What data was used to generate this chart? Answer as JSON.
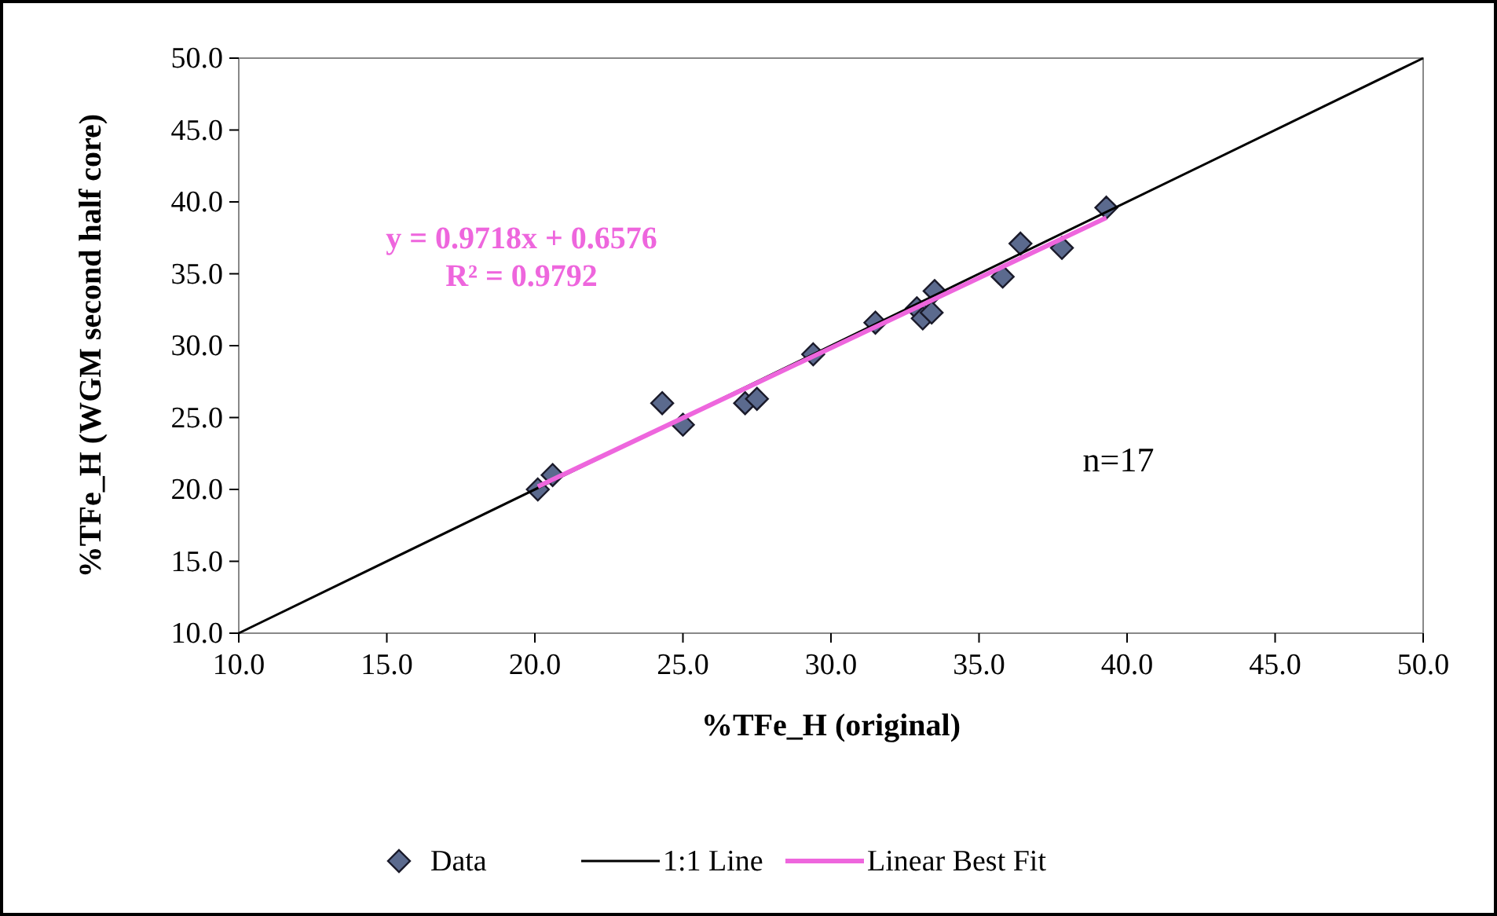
{
  "chart_data": {
    "type": "scatter",
    "xlabel": "%TFe_H (original)",
    "ylabel": "%TFe_H (WGM second half core)",
    "xlim": [
      10,
      50
    ],
    "ylim": [
      10,
      50
    ],
    "xticks": [
      {
        "value": 10,
        "label": "10.0"
      },
      {
        "value": 15,
        "label": "15.0"
      },
      {
        "value": 20,
        "label": "20.0"
      },
      {
        "value": 25,
        "label": "25.0"
      },
      {
        "value": 30,
        "label": "30.0"
      },
      {
        "value": 35,
        "label": "35.0"
      },
      {
        "value": 40,
        "label": "40.0"
      },
      {
        "value": 45,
        "label": "45.0"
      },
      {
        "value": 50,
        "label": "50.0"
      }
    ],
    "yticks": [
      {
        "value": 10,
        "label": "10.0"
      },
      {
        "value": 15,
        "label": "15.0"
      },
      {
        "value": 20,
        "label": "20.0"
      },
      {
        "value": 25,
        "label": "25.0"
      },
      {
        "value": 30,
        "label": "30.0"
      },
      {
        "value": 35,
        "label": "35.0"
      },
      {
        "value": 40,
        "label": "40.0"
      },
      {
        "value": 45,
        "label": "45.0"
      },
      {
        "value": 50,
        "label": "50.0"
      }
    ],
    "grid": false,
    "legend": "bottom",
    "series": [
      {
        "name": "Data",
        "marker": "diamond",
        "color": "#5b6a8e",
        "x": [
          20.1,
          20.6,
          24.3,
          25.0,
          27.1,
          27.5,
          29.4,
          31.5,
          32.9,
          33.1,
          33.5,
          33.4,
          35.8,
          36.4,
          37.8,
          39.3
        ],
        "values": [
          20.0,
          21.0,
          26.0,
          24.5,
          26.0,
          26.3,
          29.4,
          31.6,
          32.6,
          31.9,
          33.8,
          32.3,
          34.8,
          37.1,
          36.8,
          39.6
        ]
      },
      {
        "name": "1:1 Line",
        "type": "line",
        "color": "#000000",
        "x": [
          10,
          50
        ],
        "values": [
          10,
          50
        ]
      },
      {
        "name": "Linear Best Fit",
        "type": "line",
        "color": "#ee66dd",
        "x": [
          20.1,
          39.3
        ],
        "values": [
          20.2,
          38.9
        ]
      }
    ],
    "annotations": [
      "y = 0.9718x + 0.6576",
      "R² = 0.9792",
      "n=17"
    ]
  }
}
